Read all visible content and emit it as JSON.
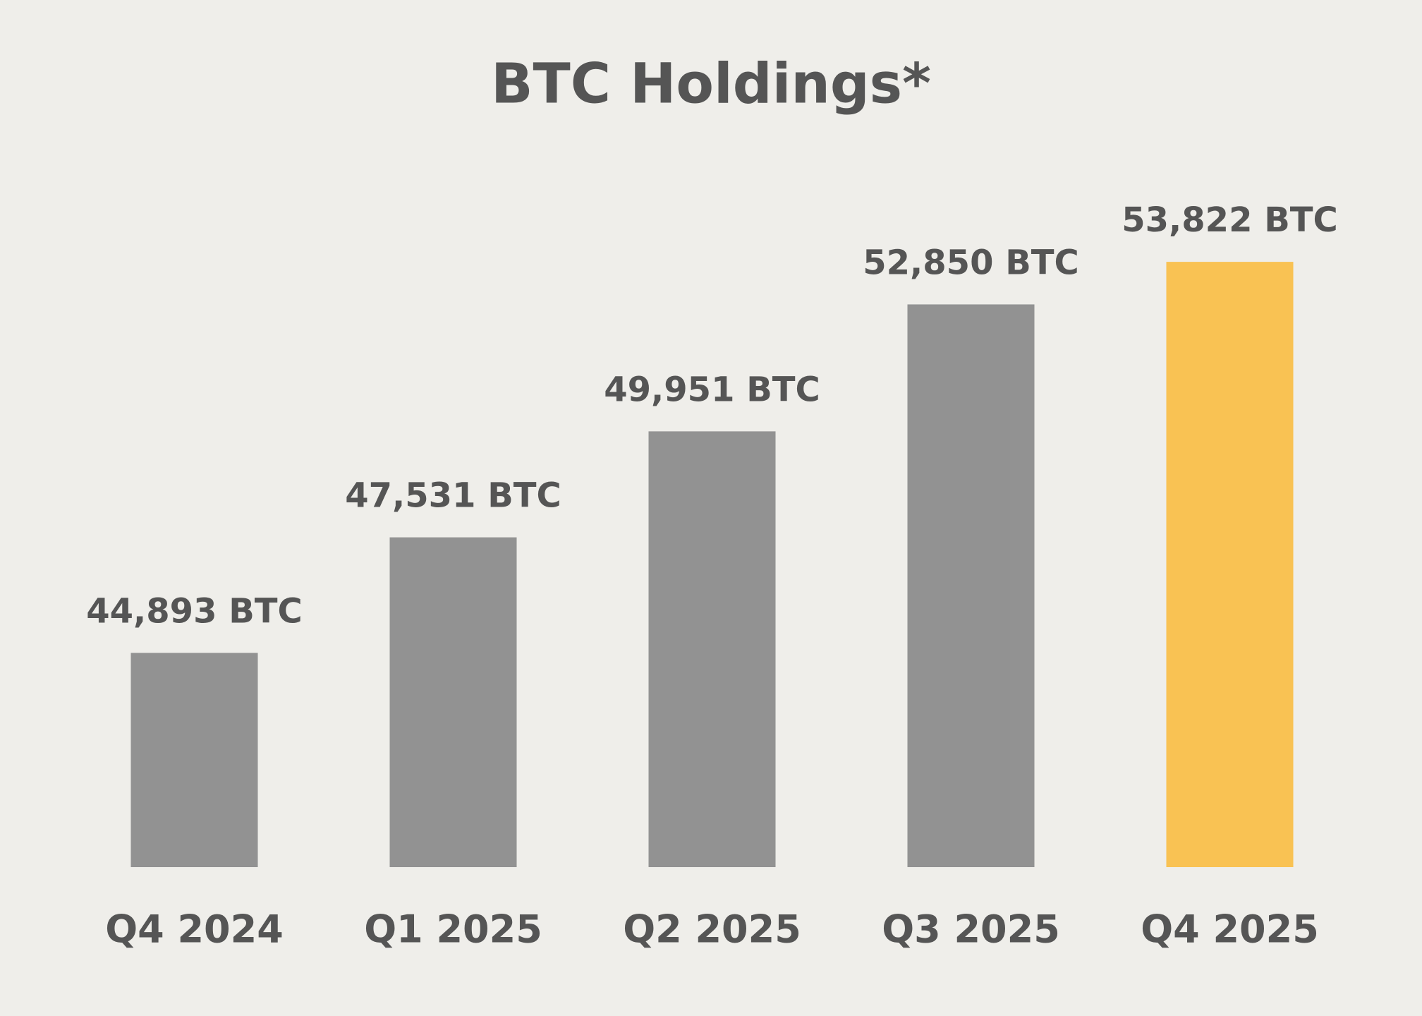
{
  "chart_data": {
    "type": "bar",
    "title": "BTC Holdings*",
    "categories": [
      "Q4 2024",
      "Q1 2025",
      "Q2 2025",
      "Q3 2025",
      "Q4 2025"
    ],
    "values": [
      44893,
      47531,
      49951,
      52850,
      53822
    ],
    "value_labels": [
      "44,893 BTC",
      "47,531 BTC",
      "49,951 BTC",
      "52,850 BTC",
      "53,822 BTC"
    ],
    "colors": [
      "#929292",
      "#929292",
      "#929292",
      "#929292",
      "#f9c253"
    ],
    "ylim": [
      40000,
      55000
    ]
  }
}
